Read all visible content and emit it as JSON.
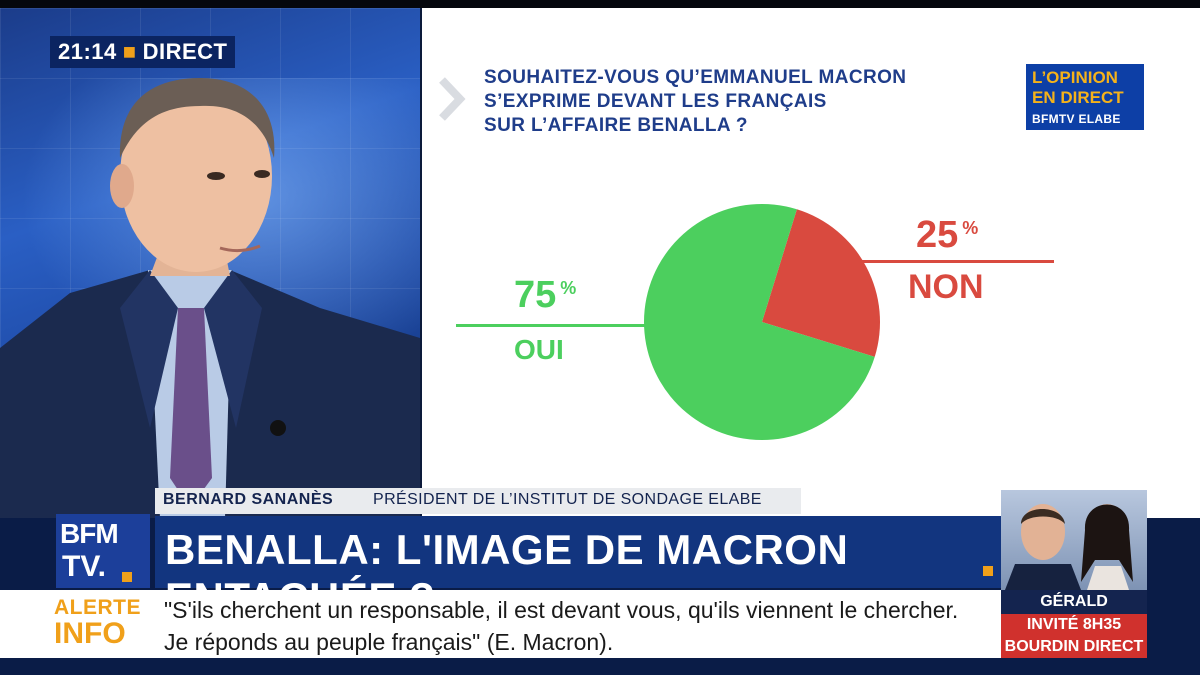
{
  "live": {
    "time": "21:14",
    "label": "DIRECT"
  },
  "chart": {
    "question_lines": [
      "SOUHAITEZ-VOUS QU’EMMANUEL MACRON",
      "S’EXPRIME DEVANT LES FRANÇAIS",
      "SUR L’AFFAIRE BENALLA ?"
    ],
    "pct_symbol": "%"
  },
  "logo_opinion": {
    "line1": "L’OPINION",
    "line2": "EN DIRECT",
    "line3": "BFMTV ELABE"
  },
  "chart_data": {
    "type": "pie",
    "title": "SOUHAITEZ-VOUS QU’EMMANUEL MACRON S’EXPRIME DEVANT LES FRANÇAIS SUR L’AFFAIRE BENALLA ?",
    "slices": [
      {
        "label": "OUI",
        "value": 75,
        "color": "#4ccf5e"
      },
      {
        "label": "NON",
        "value": 25,
        "color": "#d94a3f"
      }
    ],
    "unit": "%"
  },
  "lower_third": {
    "name": "BERNARD SANANÈS",
    "role": "PRÉSIDENT DE L’INSTITUT DE SONDAGE ELABE",
    "headline": "BENALLA: L'IMAGE DE MACRON ENTACHÉE ?",
    "channel_logo_top": "BFM",
    "channel_logo_bottom": "TV.",
    "alert_tag_line1": "ALERTE",
    "alert_tag_line2": "INFO",
    "alert_text": "\"S'ils cherchent un responsable, il est devant vous, qu'ils viennent le chercher. Je réponds au peuple français\" (E. Macron)."
  },
  "promo": {
    "name": "GÉRALD DARMANIN",
    "line1": "INVITÉ 8H35",
    "line2": "BOURDIN DIRECT"
  },
  "colors": {
    "oui": "#4ccf5e",
    "non": "#d94a3f",
    "title_blue": "#1f3d8a",
    "accent_orange": "#f0a01a"
  }
}
